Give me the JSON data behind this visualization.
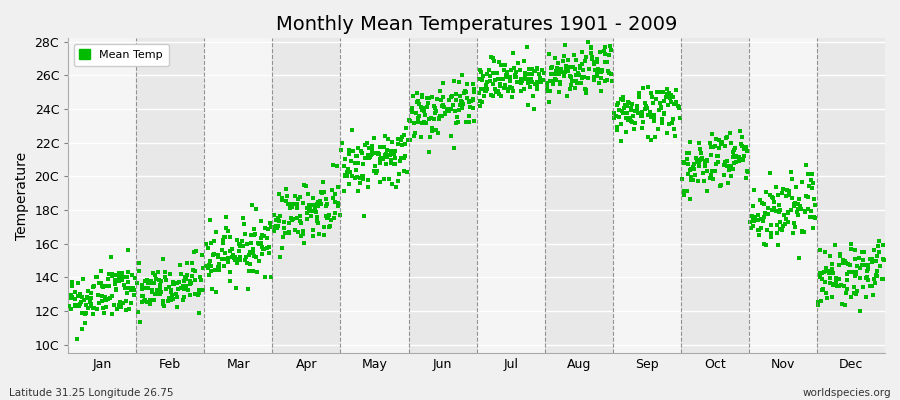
{
  "title": "Monthly Mean Temperatures 1901 - 2009",
  "ylabel": "Temperature",
  "xlabel_labels": [
    "Jan",
    "Feb",
    "Mar",
    "Apr",
    "May",
    "Jun",
    "Jul",
    "Aug",
    "Sep",
    "Oct",
    "Nov",
    "Dec"
  ],
  "ytick_labels": [
    "10C",
    "12C",
    "14C",
    "16C",
    "18C",
    "20C",
    "22C",
    "24C",
    "26C",
    "28C"
  ],
  "ytick_values": [
    10,
    12,
    14,
    16,
    18,
    20,
    22,
    24,
    26,
    28
  ],
  "ylim_min": 10,
  "ylim_max": 28,
  "dot_color": "#00bb00",
  "legend_label": "Mean Temp",
  "subtitle_left": "Latitude 31.25 Longitude 26.75",
  "subtitle_right": "worldspecies.org",
  "background_color": "#f0f0f0",
  "plot_bg_light": "#f5f5f5",
  "plot_bg_dark": "#e8e8e8",
  "monthly_means": [
    12.5,
    13.0,
    15.2,
    17.5,
    20.5,
    23.5,
    25.5,
    25.8,
    23.5,
    20.5,
    17.5,
    13.8
  ],
  "monthly_trend": [
    0.008,
    0.007,
    0.008,
    0.008,
    0.008,
    0.007,
    0.006,
    0.006,
    0.007,
    0.008,
    0.009,
    0.008
  ],
  "monthly_stds": [
    0.85,
    0.85,
    0.9,
    0.9,
    0.9,
    0.8,
    0.7,
    0.7,
    0.8,
    0.9,
    1.1,
    0.9
  ],
  "n_years": 109,
  "random_seed": 42,
  "title_fontsize": 14,
  "axis_fontsize": 9,
  "ylabel_fontsize": 10
}
